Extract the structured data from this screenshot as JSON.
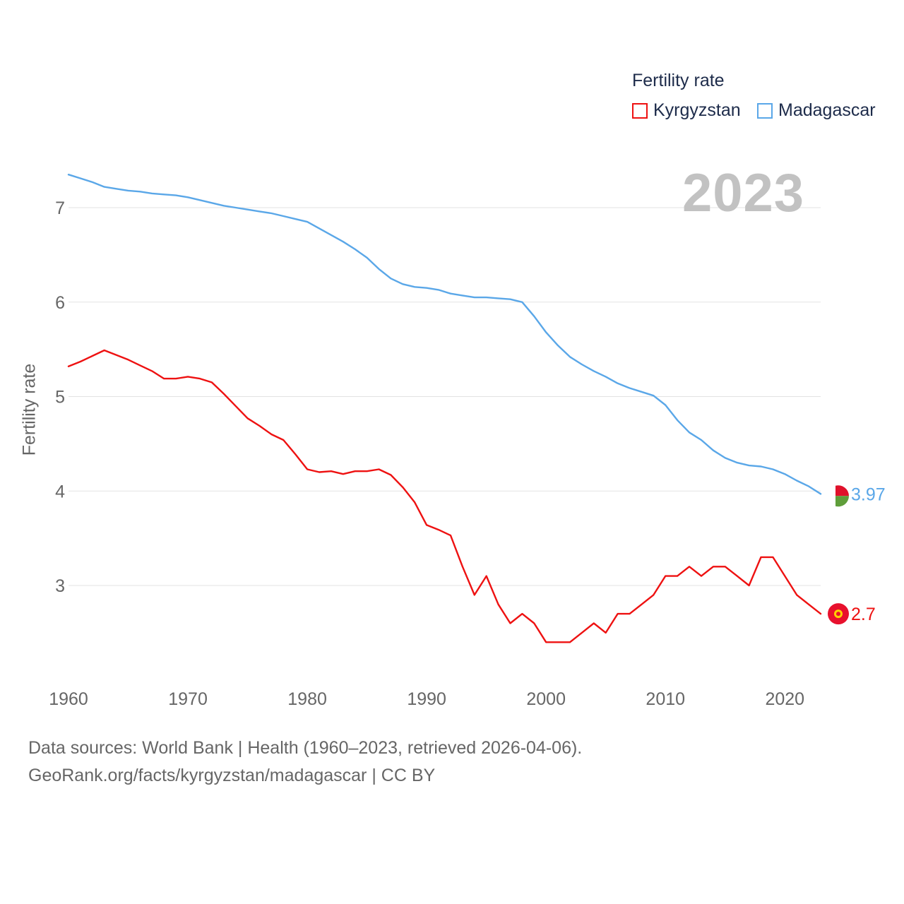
{
  "legend": {
    "title": "Fertility rate",
    "items": [
      {
        "label": "Kyrgyzstan",
        "color": "#ee1111"
      },
      {
        "label": "Madagascar",
        "color": "#5aa7e8"
      }
    ]
  },
  "year_display": "2023",
  "source": {
    "line1": "Data sources: World Bank | Health (1960–2023, retrieved 2026-04-06).",
    "line2": "GeoRank.org/facts/kyrgyzstan/madagascar | CC BY"
  },
  "chart_data": {
    "type": "line",
    "title": "Fertility rate",
    "xlabel": "",
    "ylabel": "Fertility rate",
    "xlim": [
      1960,
      2023
    ],
    "ylim": [
      2.0,
      7.5
    ],
    "x_ticks": [
      1960,
      1970,
      1980,
      1990,
      2000,
      2010,
      2020
    ],
    "y_ticks": [
      3,
      4,
      5,
      6,
      7
    ],
    "grid": true,
    "legend_position": "top-right",
    "x": [
      1960,
      1961,
      1962,
      1963,
      1964,
      1965,
      1966,
      1967,
      1968,
      1969,
      1970,
      1971,
      1972,
      1973,
      1974,
      1975,
      1976,
      1977,
      1978,
      1979,
      1980,
      1981,
      1982,
      1983,
      1984,
      1985,
      1986,
      1987,
      1988,
      1989,
      1990,
      1991,
      1992,
      1993,
      1994,
      1995,
      1996,
      1997,
      1998,
      1999,
      2000,
      2001,
      2002,
      2003,
      2004,
      2005,
      2006,
      2007,
      2008,
      2009,
      2010,
      2011,
      2012,
      2013,
      2014,
      2015,
      2016,
      2017,
      2018,
      2019,
      2020,
      2021,
      2022,
      2023
    ],
    "series": [
      {
        "name": "Kyrgyzstan",
        "color": "#ee1111",
        "end_label": "2.7",
        "values": [
          5.32,
          5.37,
          5.43,
          5.49,
          5.44,
          5.39,
          5.33,
          5.27,
          5.19,
          5.19,
          5.21,
          5.19,
          5.15,
          5.03,
          4.9,
          4.77,
          4.69,
          4.6,
          4.54,
          4.39,
          4.23,
          4.2,
          4.21,
          4.18,
          4.21,
          4.21,
          4.23,
          4.17,
          4.04,
          3.88,
          3.64,
          3.59,
          3.53,
          3.2,
          2.9,
          3.1,
          2.8,
          2.6,
          2.7,
          2.6,
          2.4,
          2.4,
          2.4,
          2.5,
          2.6,
          2.5,
          2.7,
          2.7,
          2.8,
          2.9,
          3.1,
          3.1,
          3.2,
          3.1,
          3.2,
          3.2,
          3.1,
          3.0,
          3.3,
          3.3,
          3.1,
          2.9,
          2.8,
          2.7
        ]
      },
      {
        "name": "Madagascar",
        "color": "#5aa7e8",
        "end_label": "3.97",
        "values": [
          7.35,
          7.31,
          7.27,
          7.22,
          7.2,
          7.18,
          7.17,
          7.15,
          7.14,
          7.13,
          7.11,
          7.08,
          7.05,
          7.02,
          7.0,
          6.98,
          6.96,
          6.94,
          6.91,
          6.88,
          6.85,
          6.78,
          6.71,
          6.64,
          6.56,
          6.47,
          6.35,
          6.25,
          6.19,
          6.16,
          6.15,
          6.13,
          6.09,
          6.07,
          6.05,
          6.05,
          6.04,
          6.03,
          6.0,
          5.85,
          5.68,
          5.54,
          5.42,
          5.34,
          5.27,
          5.21,
          5.14,
          5.09,
          5.05,
          5.01,
          4.91,
          4.75,
          4.62,
          4.54,
          4.43,
          4.35,
          4.3,
          4.27,
          4.26,
          4.23,
          4.18,
          4.11,
          4.05,
          3.97
        ]
      }
    ]
  }
}
